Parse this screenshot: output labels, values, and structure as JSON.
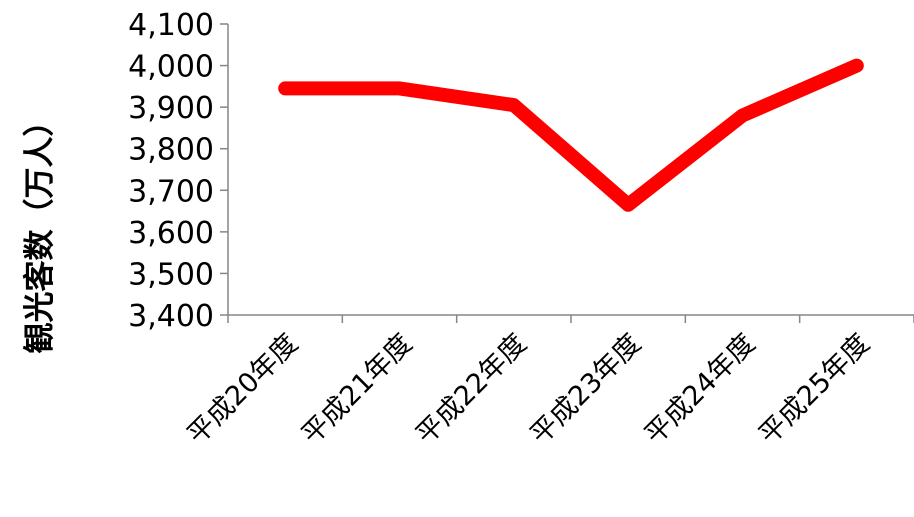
{
  "chart_data": {
    "type": "line",
    "categories": [
      "平成20年度",
      "平成21年度",
      "平成22年度",
      "平成23年度",
      "平成24年度",
      "平成25年度"
    ],
    "values": [
      3945,
      3945,
      3905,
      3665,
      3880,
      4000
    ],
    "ylabel": "観光客数（万人）",
    "ylim": [
      3400,
      4100
    ],
    "yticks": [
      3400,
      3500,
      3600,
      3700,
      3800,
      3900,
      4000,
      4100
    ],
    "ytick_labels": [
      "3,400",
      "3,500",
      "3,600",
      "3,700",
      "3,800",
      "3,900",
      "4,000",
      "4,100"
    ],
    "line_color": "#ff0000",
    "grid": false,
    "legend": false
  }
}
